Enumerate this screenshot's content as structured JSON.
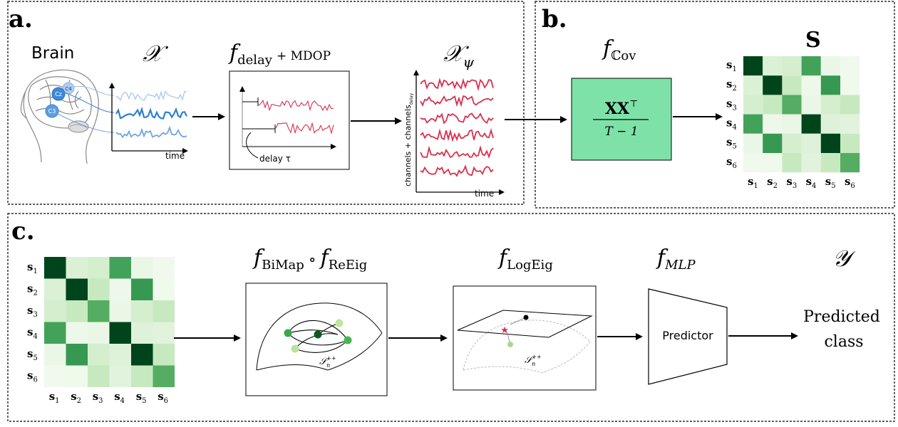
{
  "panels": {
    "a": {
      "letter": "a.",
      "brain_label": "Brain",
      "x_symbol": "𝒳",
      "electrodes": [
        "Cz",
        "C4",
        "C3"
      ],
      "time_label": "time",
      "delay_title_f": "f",
      "delay_title_sub": "delay",
      "delay_title_rest": "+ MDOP",
      "delay_note": "delay τ",
      "xpsi_symbol": "𝒳",
      "xpsi_sub": "ψ",
      "channels_label": "channels + channels",
      "channels_sub": "delay",
      "time_label_2": "time",
      "colors": {
        "signal_light": "#a9c8ec",
        "signal_mid": "#2f7fd0",
        "signal_soft": "#6fa5df",
        "delayed": "#d9304f"
      }
    },
    "b": {
      "letter": "b.",
      "fcov_f": "f",
      "fcov_sub": "ℂov",
      "box_numerator": "XX",
      "box_sup": "⊤",
      "box_denominator": "T − 1",
      "s_label": "S",
      "box_color": "#7ee2a8"
    },
    "c": {
      "letter": "c.",
      "bimap_f1": "f",
      "bimap_sub1": "BiMap",
      "bimap_circ": "∘",
      "bimap_f2": "f",
      "bimap_sub2": "ReEig",
      "logeig_f": "f",
      "logeig_sub": "LogEig",
      "mlp_f": "f",
      "mlp_sub": "MLP",
      "y_symbol": "𝒴",
      "manifold_label": "𝒮",
      "manifold_sub": "n",
      "manifold_sup": "++",
      "predictor_label": "Predictor",
      "predicted_line1": "Predicted",
      "predicted_line2": "class"
    }
  },
  "matrix": {
    "row_labels": [
      "s1",
      "s2",
      "s3",
      "s4",
      "s5",
      "s6"
    ],
    "col_labels": [
      "s1",
      "s2",
      "s3",
      "s4",
      "s5",
      "s6"
    ],
    "label_base": "s",
    "label_indices": [
      "1",
      "2",
      "3",
      "4",
      "5",
      "6"
    ],
    "values": [
      [
        1.0,
        0.18,
        0.22,
        0.72,
        0.08,
        0.04
      ],
      [
        0.18,
        1.0,
        0.3,
        0.06,
        0.75,
        0.05
      ],
      [
        0.22,
        0.3,
        0.68,
        0.08,
        0.22,
        0.3
      ],
      [
        0.72,
        0.06,
        0.08,
        1.0,
        0.16,
        0.14
      ],
      [
        0.08,
        0.75,
        0.22,
        0.16,
        1.0,
        0.3
      ],
      [
        0.04,
        0.05,
        0.3,
        0.14,
        0.3,
        0.68
      ]
    ]
  }
}
